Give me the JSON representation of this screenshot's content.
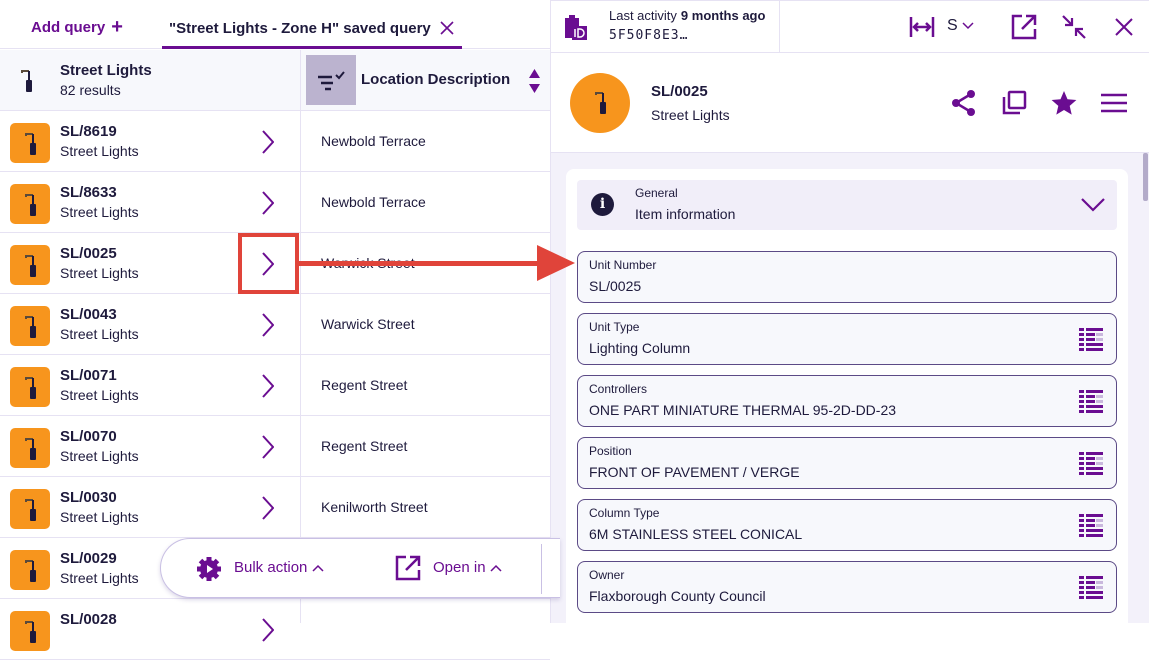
{
  "tabs": {
    "add_query": "Add query",
    "add_icon": "+",
    "active_tab": "\"Street Lights - Zone H\" saved query",
    "close_icon": "×"
  },
  "list": {
    "title": "Street Lights",
    "count": "82 results",
    "column": "Location Description",
    "rows": [
      {
        "id": "SL/8619",
        "type": "Street Lights",
        "location": "Newbold Terrace"
      },
      {
        "id": "SL/8633",
        "type": "Street Lights",
        "location": "Newbold Terrace"
      },
      {
        "id": "SL/0025",
        "type": "Street Lights",
        "location": "Warwick Street"
      },
      {
        "id": "SL/0043",
        "type": "Street Lights",
        "location": "Warwick Street"
      },
      {
        "id": "SL/0071",
        "type": "Street Lights",
        "location": "Regent Street"
      },
      {
        "id": "SL/0070",
        "type": "Street Lights",
        "location": "Regent Street"
      },
      {
        "id": "SL/0030",
        "type": "Street Lights",
        "location": "Kenilworth Street"
      },
      {
        "id": "SL/0029",
        "type": "Street Lights",
        "location": ""
      },
      {
        "id": "SL/0028",
        "type": "",
        "location": ""
      }
    ]
  },
  "bulk": {
    "bulk_action": "Bulk action",
    "open_in": "Open in"
  },
  "detail": {
    "last_activity_label": "Last activity",
    "last_activity_value": "9 months ago",
    "hash": "5F50F8E3…",
    "size": "S",
    "id": "SL/0025",
    "type": "Street Lights",
    "section": {
      "label": "General",
      "title": "Item information"
    },
    "fields": [
      {
        "label": "Unit Number",
        "value": "SL/0025"
      },
      {
        "label": "Unit Type",
        "value": "Lighting Column"
      },
      {
        "label": "Controllers",
        "value": "ONE PART MINIATURE THERMAL 95-2D-DD-23"
      },
      {
        "label": "Position",
        "value": "FRONT OF PAVEMENT / VERGE"
      },
      {
        "label": "Column Type",
        "value": "6M STAINLESS STEEL CONICAL"
      },
      {
        "label": "Owner",
        "value": "Flaxborough County Council"
      }
    ]
  },
  "colors": {
    "accent": "#6a0d91",
    "icon_bg": "#f7951d",
    "annotation": "#e0443a"
  }
}
